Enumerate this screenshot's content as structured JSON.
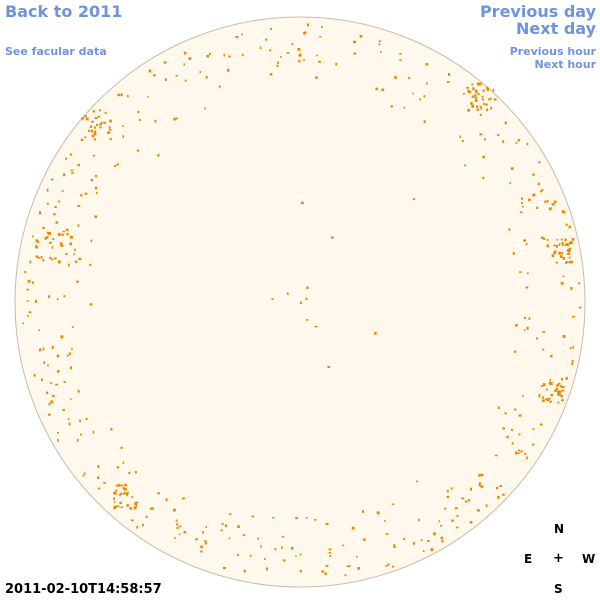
{
  "nav": {
    "back_label": "Back to 2011",
    "facular_label": "See facular data",
    "previous_day_label": "Previous day",
    "next_day_label": "Next day",
    "previous_hour_label": "Previous hour",
    "next_hour_label": "Next hour"
  },
  "timestamp": "2011-02-10T14:58:57",
  "compass": {
    "north": "N",
    "east": "E",
    "center": "+",
    "west": "W",
    "south": "S"
  },
  "colors": {
    "link": "#6f93de",
    "disk_fill": "#fff8ec",
    "disk_outline": "#c9bca8",
    "feature": "#e88a00"
  },
  "disk_features": {
    "description_count": 420,
    "seed": 20110210
  }
}
